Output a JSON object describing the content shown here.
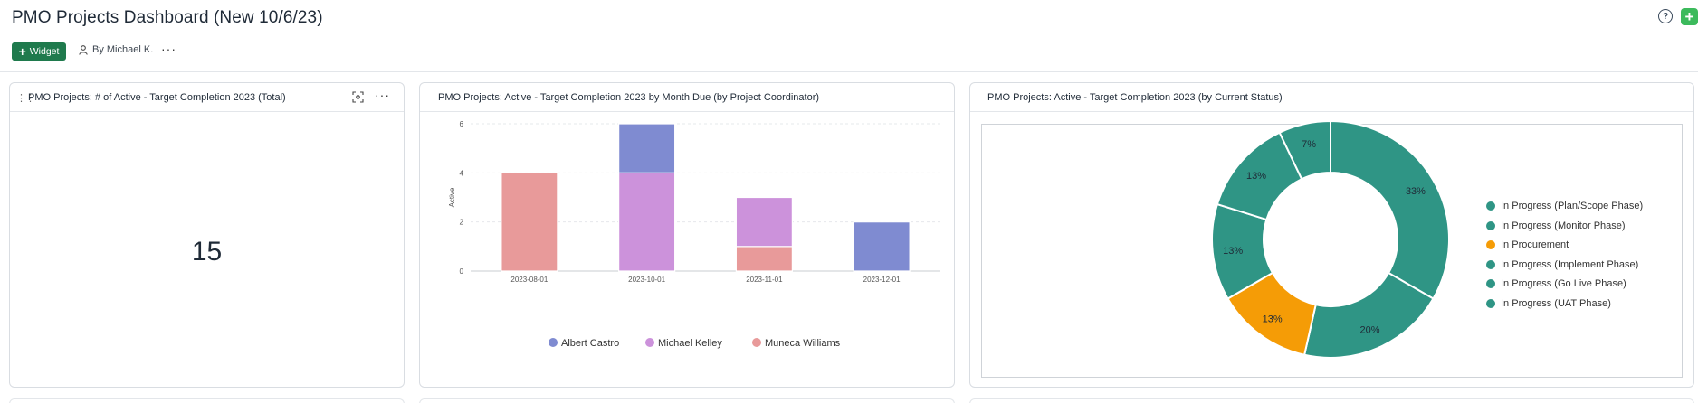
{
  "header": {
    "title": "PMO Projects Dashboard (New 10/6/23)",
    "widget_label": "Widget",
    "byline": "By Michael K.",
    "more": "···",
    "help": "?",
    "add": "+"
  },
  "widgets": [
    {
      "title": "PMO Projects: # of Active - Target Completion 2023 (Total)",
      "value": "15"
    },
    {
      "title": "PMO Projects: Active - Target Completion 2023 by Month Due (by Project Coordinator)"
    },
    {
      "title": "PMO Projects: Active - Target Completion 2023 (by Current Status)"
    }
  ],
  "colors": {
    "Albert Castro": "#7f8bd1",
    "Michael Kelley": "#cc92db",
    "Muneca Williams": "#e89a9a",
    "teal": "#2f9585",
    "orange": "#f59c06",
    "brand": "#1f7a4d"
  },
  "chart_data": [
    {
      "type": "bar",
      "stacked": true,
      "title": "PMO Projects: Active - Target Completion 2023 by Month Due (by Project Coordinator)",
      "categories": [
        "2023-08-01",
        "2023-10-01",
        "2023-11-01",
        "2023-12-01"
      ],
      "ylabel": "Active",
      "xlabel": "",
      "ylim": [
        0,
        6
      ],
      "yticks": [
        "0",
        "2",
        "4",
        "6"
      ],
      "grid": true,
      "legend_position": "bottom",
      "series": [
        {
          "name": "Muneca Williams",
          "values": [
            4,
            0,
            1,
            0
          ]
        },
        {
          "name": "Michael Kelley",
          "values": [
            0,
            4,
            2,
            0
          ]
        },
        {
          "name": "Albert Castro",
          "values": [
            0,
            2,
            0,
            2
          ]
        }
      ]
    },
    {
      "type": "pie",
      "donut": true,
      "title": "PMO Projects: Active - Target Completion 2023 (by Current Status)",
      "legend_position": "right",
      "slices": [
        {
          "name": "In Progress (Plan/Scope Phase)",
          "value": 33,
          "label": "33%"
        },
        {
          "name": "In Progress (Monitor Phase)",
          "value": 20,
          "label": "20%"
        },
        {
          "name": "In Procurement",
          "value": 13,
          "label": "13%"
        },
        {
          "name": "In Progress (Implement Phase)",
          "value": 13,
          "label": "13%"
        },
        {
          "name": "In Progress (Go Live Phase)",
          "value": 13,
          "label": "13%"
        },
        {
          "name": "In Progress (UAT Phase)",
          "value": 7,
          "label": "7%"
        }
      ],
      "legend": [
        "In Progress (Plan/Scope Phase)",
        "In Progress (Monitor Phase)",
        "In Procurement",
        "In Progress (Implement Phase)",
        "In Progress (Go Live Phase)",
        "In Progress (UAT Phase)"
      ]
    }
  ]
}
